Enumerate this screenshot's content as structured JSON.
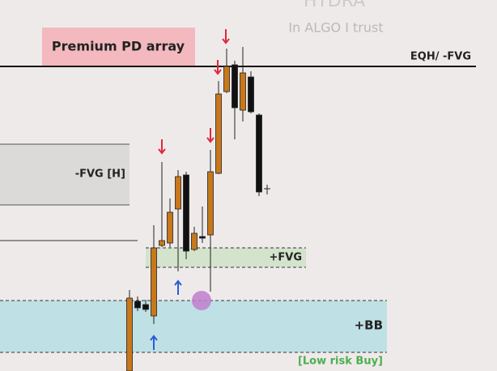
{
  "header": {
    "brand": "HYDRA",
    "tagline": "In ALGO I trust"
  },
  "zones": {
    "premium": "Premium PD array",
    "eqh": "EQH/ -FVG",
    "fvg_h": "-FVG [H]",
    "fvg_plus": "+FVG",
    "bb": "+BB",
    "low_risk": "[Low risk Buy]"
  }
}
